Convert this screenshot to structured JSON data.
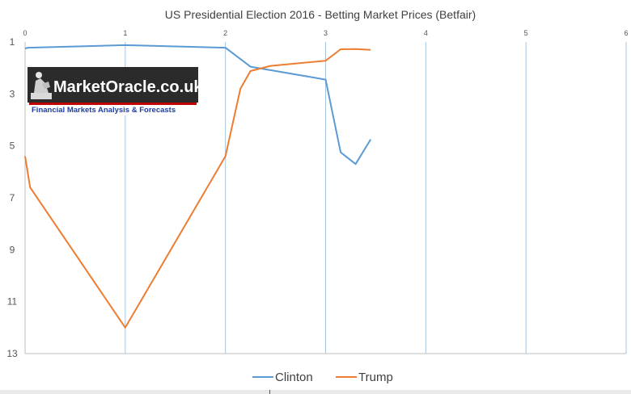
{
  "chart_data": {
    "type": "line",
    "title": "US Presidential Election 2016 - Betting Market Prices (Betfair)",
    "xlabel": "",
    "ylabel": "",
    "xlim": [
      0,
      6
    ],
    "ylim": [
      1,
      13
    ],
    "y_inverted": true,
    "x_ticks": [
      "0",
      "1",
      "2",
      "3",
      "4",
      "5",
      "6"
    ],
    "y_ticks": [
      "1",
      "3",
      "5",
      "7",
      "9",
      "11",
      "13"
    ],
    "grid": "vertical",
    "legend_position": "bottom",
    "series": [
      {
        "name": "Clinton",
        "color": "#5b9bd5",
        "points": [
          [
            0,
            1.25
          ],
          [
            0.03,
            1.22
          ],
          [
            1,
            1.12
          ],
          [
            2,
            1.22
          ],
          [
            2.25,
            1.95
          ],
          [
            3,
            2.45
          ],
          [
            3.15,
            5.25
          ],
          [
            3.3,
            5.7
          ],
          [
            3.45,
            4.75
          ]
        ]
      },
      {
        "name": "Trump",
        "color": "#ed7d31",
        "points": [
          [
            0,
            5.4
          ],
          [
            0.05,
            6.6
          ],
          [
            1,
            12.0
          ],
          [
            2,
            5.4
          ],
          [
            2.15,
            2.8
          ],
          [
            2.25,
            2.12
          ],
          [
            2.45,
            1.92
          ],
          [
            3,
            1.72
          ],
          [
            3.15,
            1.28
          ],
          [
            3.3,
            1.27
          ],
          [
            3.45,
            1.3
          ]
        ]
      }
    ]
  },
  "logo": {
    "brand": "MarketOracle.co.uk",
    "tagline": "Financial Markets Analysis & Forecasts"
  }
}
